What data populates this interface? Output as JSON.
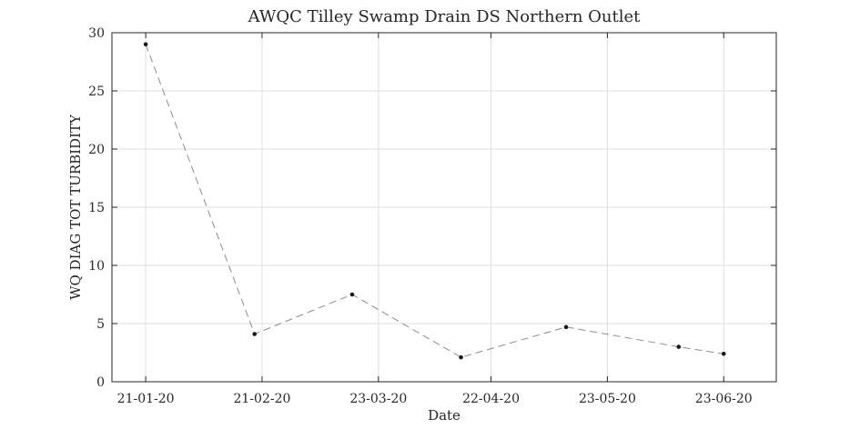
{
  "chart_data": {
    "type": "line",
    "title": "AWQC Tilley Swamp Drain DS Northern Outlet",
    "xlabel": "Date",
    "ylabel": "WQ DIAG TOT TURBIDITY",
    "grid": true,
    "ylim": [
      0,
      30
    ],
    "yticks": [
      0,
      5,
      10,
      15,
      20,
      25,
      30
    ],
    "xlim": [
      "2020-01-12",
      "2020-07-07"
    ],
    "xticks": [
      {
        "date": "2020-01-21",
        "label": "21-01-20"
      },
      {
        "date": "2020-02-21",
        "label": "21-02-20"
      },
      {
        "date": "2020-03-23",
        "label": "23-03-20"
      },
      {
        "date": "2020-04-22",
        "label": "22-04-20"
      },
      {
        "date": "2020-05-23",
        "label": "23-05-20"
      },
      {
        "date": "2020-06-23",
        "label": "23-06-20"
      }
    ],
    "series": [
      {
        "line_style": "dashed",
        "line_color": "#8c8c8c",
        "marker_color": "#1a1a1a",
        "points": [
          {
            "x": "2020-01-21",
            "y": 29.0
          },
          {
            "x": "2020-02-19",
            "y": 4.1
          },
          {
            "x": "2020-03-16",
            "y": 7.5
          },
          {
            "x": "2020-04-14",
            "y": 2.1
          },
          {
            "x": "2020-05-12",
            "y": 4.7
          },
          {
            "x": "2020-06-11",
            "y": 3.0
          },
          {
            "x": "2020-06-23",
            "y": 2.4
          }
        ]
      }
    ]
  }
}
